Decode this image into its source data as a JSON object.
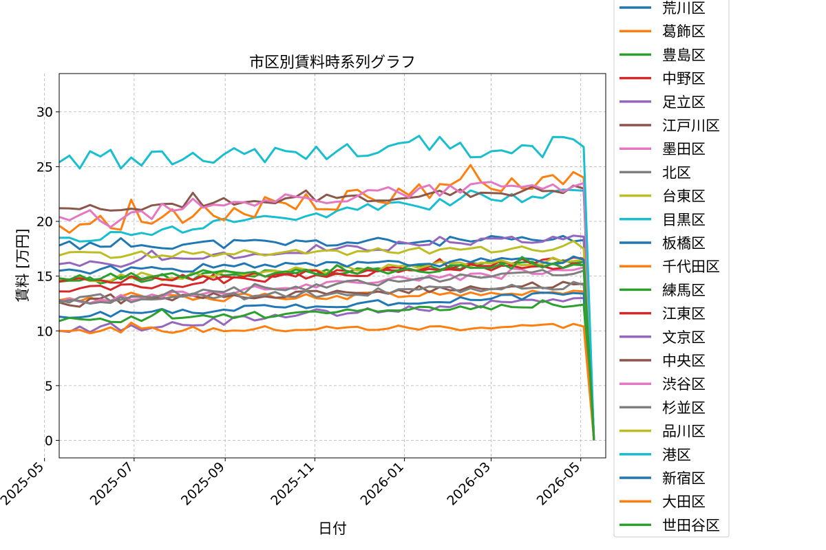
{
  "chart_data": {
    "type": "line",
    "title": "市区別賃料時系列グラフ",
    "xlabel": "日付",
    "ylabel": "賃料 [万円]",
    "x": [
      "2025-05-11",
      "2025-05-18",
      "2025-05-25",
      "2025-06-01",
      "2025-06-08",
      "2025-06-15",
      "2025-06-22",
      "2025-06-29",
      "2025-07-06",
      "2025-07-13",
      "2025-07-20",
      "2025-07-27",
      "2025-08-03",
      "2025-08-10",
      "2025-08-17",
      "2025-08-24",
      "2025-08-31",
      "2025-09-07",
      "2025-09-14",
      "2025-09-21",
      "2025-09-28",
      "2025-10-05",
      "2025-10-12",
      "2025-10-19",
      "2025-10-26",
      "2025-11-02",
      "2025-11-09",
      "2025-11-16",
      "2025-11-23",
      "2025-11-30",
      "2025-12-07",
      "2025-12-14",
      "2025-12-21",
      "2025-12-28",
      "2026-01-04",
      "2026-01-11",
      "2026-01-18",
      "2026-01-25",
      "2026-02-01",
      "2026-02-08",
      "2026-02-15",
      "2026-02-22",
      "2026-03-01",
      "2026-03-08",
      "2026-03-15",
      "2026-03-22",
      "2026-03-29",
      "2026-04-05",
      "2026-04-12",
      "2026-04-19",
      "2026-04-26",
      "2026-05-03",
      "2026-05-10"
    ],
    "x_ticks": [
      "2025-05",
      "2025-07",
      "2025-09",
      "2025-11",
      "2026-01",
      "2026-03",
      "2026-05"
    ],
    "y_ticks": [
      0,
      5,
      10,
      15,
      20,
      25,
      30
    ],
    "ylim": [
      -1.6,
      33.5
    ],
    "xlim": [
      "2025-05-11",
      "2026-05-18"
    ],
    "grid": true,
    "legend_position": "outside-right",
    "series": [
      {
        "name": "荒川区",
        "color": "#1f77b4",
        "start": 17.8,
        "end": 18.3,
        "noise": 0.45,
        "seed": 11
      },
      {
        "name": "葛飾区",
        "color": "#ff7f0e",
        "start": 12.8,
        "end": 13.6,
        "noise": 0.35,
        "seed": 12
      },
      {
        "name": "豊島区",
        "color": "#2ca02c",
        "start": 14.5,
        "end": 16.3,
        "noise": 0.35,
        "seed": 13
      },
      {
        "name": "中野区",
        "color": "#d62728",
        "start": 13.6,
        "end": 16.6,
        "noise": 0.35,
        "seed": 14
      },
      {
        "name": "足立区",
        "color": "#9467bd",
        "start": 10.0,
        "end": 13.0,
        "noise": 0.3,
        "seed": 15
      },
      {
        "name": "江戸川区",
        "color": "#8c564b",
        "start": 12.6,
        "end": 14.3,
        "noise": 0.35,
        "seed": 16
      },
      {
        "name": "墨田区",
        "color": "#e377c2",
        "start": 12.6,
        "end": 15.8,
        "noise": 0.35,
        "seed": 17
      },
      {
        "name": "北区",
        "color": "#7f7f7f",
        "start": 12.6,
        "end": 14.2,
        "noise": 0.35,
        "seed": 18
      },
      {
        "name": "台東区",
        "color": "#bcbd22",
        "start": 14.6,
        "end": 16.5,
        "noise": 0.35,
        "seed": 19
      },
      {
        "name": "目黒区",
        "color": "#17becf",
        "start": 18.5,
        "end": 22.8,
        "noise": 0.55,
        "seed": 20
      },
      {
        "name": "板橋区",
        "color": "#1f77b4",
        "start": 11.3,
        "end": 13.4,
        "noise": 0.3,
        "seed": 21
      },
      {
        "name": "千代田区",
        "color": "#ff7f0e",
        "start": 19.6,
        "end": 24.0,
        "noise": 0.9,
        "seed": 22
      },
      {
        "name": "練馬区",
        "color": "#2ca02c",
        "start": 10.9,
        "end": 12.4,
        "noise": 0.3,
        "seed": 23
      },
      {
        "name": "江東区",
        "color": "#d62728",
        "start": 14.5,
        "end": 16.0,
        "noise": 0.3,
        "seed": 24
      },
      {
        "name": "文京区",
        "color": "#9467bd",
        "start": 16.1,
        "end": 18.6,
        "noise": 0.35,
        "seed": 25
      },
      {
        "name": "中央区",
        "color": "#8c564b",
        "start": 21.2,
        "end": 23.0,
        "noise": 0.45,
        "seed": 26
      },
      {
        "name": "渋谷区",
        "color": "#e377c2",
        "start": 20.4,
        "end": 23.5,
        "noise": 0.8,
        "seed": 27
      },
      {
        "name": "杉並区",
        "color": "#7f7f7f",
        "start": 12.8,
        "end": 15.5,
        "noise": 0.35,
        "seed": 28
      },
      {
        "name": "品川区",
        "color": "#bcbd22",
        "start": 16.9,
        "end": 17.5,
        "noise": 0.3,
        "seed": 29
      },
      {
        "name": "港区",
        "color": "#17becf",
        "start": 25.4,
        "end": 26.8,
        "noise": 1.0,
        "seed": 30
      },
      {
        "name": "新宿区",
        "color": "#1f77b4",
        "start": 15.5,
        "end": 16.5,
        "noise": 0.35,
        "seed": 31
      },
      {
        "name": "大田区",
        "color": "#ff7f0e",
        "start": 10.0,
        "end": 10.4,
        "noise": 0.3,
        "seed": 32
      },
      {
        "name": "世田谷区",
        "color": "#2ca02c",
        "start": 14.8,
        "end": 16.0,
        "noise": 0.35,
        "seed": 33
      }
    ]
  }
}
